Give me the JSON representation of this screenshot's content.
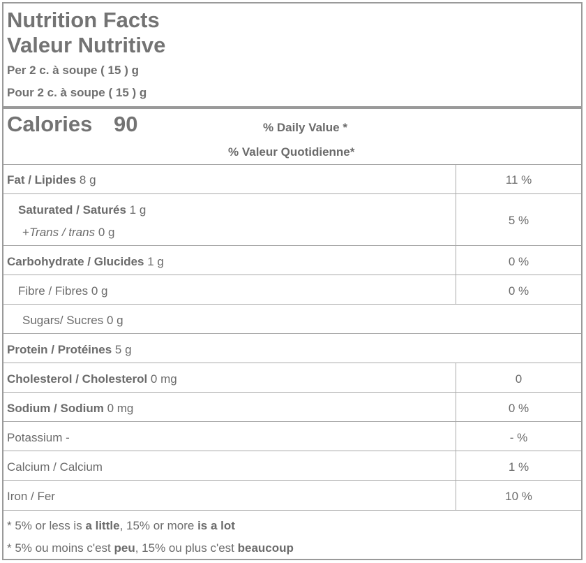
{
  "header": {
    "title_en": "Nutrition Facts",
    "title_fr": "Valeur Nutritive",
    "serving_en": "Per 2 c. à soupe ( 15 ) g",
    "serving_fr": "Pour 2 c. à soupe ( 15 ) g"
  },
  "calories": {
    "label": "Calories",
    "value": "90",
    "dv_en": "% Daily Value *",
    "dv_fr": "% Valeur Quotidienne*"
  },
  "nutrients": {
    "fat": {
      "name": "Fat / Lipides",
      "amount": " 8 g",
      "dv": "11 %"
    },
    "saturated": {
      "name": "Saturated / Saturés",
      "amount": " 1 g",
      "dv": "5 %"
    },
    "trans": {
      "prefix": "+",
      "name": "Trans / trans",
      "amount": " 0 g"
    },
    "carbohydrate": {
      "name": "Carbohydrate / Glucides",
      "amount": " 1 g",
      "dv": "0 %"
    },
    "fibre": {
      "name": "Fibre / Fibres 0 g",
      "dv": "0 %"
    },
    "sugars": {
      "name": "Sugars/ Sucres 0 g"
    },
    "protein": {
      "name": "Protein / Protéines",
      "amount": " 5 g"
    },
    "cholesterol": {
      "name": "Cholesterol / Cholesterol",
      "amount": " 0 mg",
      "dv": "0"
    },
    "sodium": {
      "name": "Sodium / Sodium",
      "amount": " 0 mg",
      "dv": "0 %"
    },
    "potassium": {
      "name": "Potassium -",
      "dv": "- %"
    },
    "calcium": {
      "name": "Calcium / Calcium",
      "dv": "1 %"
    },
    "iron": {
      "name": "Iron / Fer",
      "dv": "10 %"
    }
  },
  "footnote": {
    "en_prefix": "* 5% or less is ",
    "en_little": "a little",
    "en_mid": ", 15% or more ",
    "en_lot": "is a lot",
    "fr_prefix": "* 5% ou moins c'est ",
    "fr_peu": "peu",
    "fr_mid": ", 15% ou plus c'est ",
    "fr_beaucoup": "beaucoup"
  }
}
